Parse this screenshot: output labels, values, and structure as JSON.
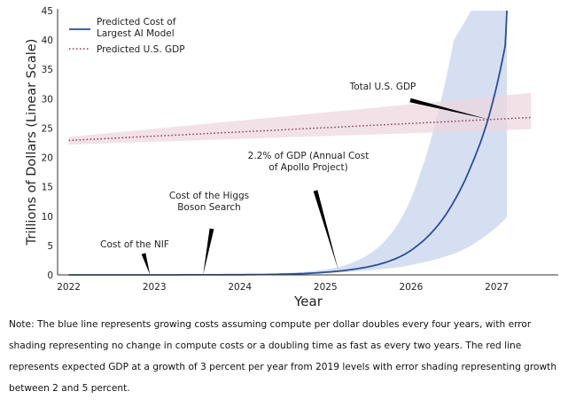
{
  "chart_data": {
    "type": "line",
    "ylabel": "Trillions of Dollars (Linear Scale)",
    "xlabel": "Year",
    "xlim": [
      2021.88,
      2027.72
    ],
    "ylim": [
      0,
      45
    ],
    "xticks": [
      2022,
      2023,
      2024,
      2025,
      2026,
      2027
    ],
    "yticks": [
      0,
      5,
      10,
      15,
      20,
      25,
      30,
      35,
      40,
      45
    ],
    "legend_position": "top-left",
    "grid": false,
    "series": [
      {
        "name": "Predicted Cost of\nLargest AI Model",
        "style": "solid",
        "color": "#2b4e9a",
        "band_color": "#c7d4ec",
        "x": [
          2022.0,
          2023.0,
          2024.0,
          2024.5,
          2025.0,
          2025.3,
          2025.6,
          2025.9,
          2026.1,
          2026.3,
          2026.5,
          2026.7,
          2026.9,
          2027.1,
          2027.12
        ],
        "y": [
          0.0,
          0.0,
          0.03,
          0.12,
          0.45,
          0.9,
          1.7,
          3.3,
          5.3,
          8.2,
          12.5,
          18.5,
          26.5,
          39.0,
          45.0
        ],
        "low": [
          0.0,
          0.0,
          0.02,
          0.07,
          0.3,
          0.55,
          0.9,
          1.4,
          2.0,
          2.7,
          3.6,
          5.0,
          7.0,
          9.5,
          10.0
        ],
        "high": [
          0.0,
          0.0,
          0.08,
          0.3,
          0.9,
          2.0,
          4.5,
          10.0,
          17.0,
          27.0,
          40.0,
          45.0,
          45.0,
          45.0,
          45.0
        ]
      },
      {
        "name": "Predicted U.S. GDP",
        "style": "dotted",
        "color": "#8b3a55",
        "band_color": "#edd6de",
        "x": [
          2022.0,
          2027.4
        ],
        "y": [
          22.9,
          26.8
        ],
        "low": [
          22.2,
          24.8
        ],
        "high": [
          23.5,
          31.0
        ]
      }
    ],
    "annotations": [
      {
        "text": "Total U.S. GDP",
        "x": 2026.9,
        "y": 26.5
      },
      {
        "text": "2.2% of GDP (Annual Cost\nof Apollo Project)",
        "x": 2025.15,
        "y": 0.8
      },
      {
        "text": "Cost of the Higgs\nBoson Search",
        "x": 2023.57,
        "y": 0.0
      },
      {
        "text": "Cost of the NIF",
        "x": 2022.95,
        "y": 0.0
      }
    ]
  },
  "note": "Note: The blue line represents growing costs assuming compute per dollar doubles every four years, with error shading representing no change in compute costs or a doubling time as fast as every two years. The red line represents expected GDP at a growth of 3 percent per year from 2019 levels with error shading representing growth between 2 and 5 percent."
}
